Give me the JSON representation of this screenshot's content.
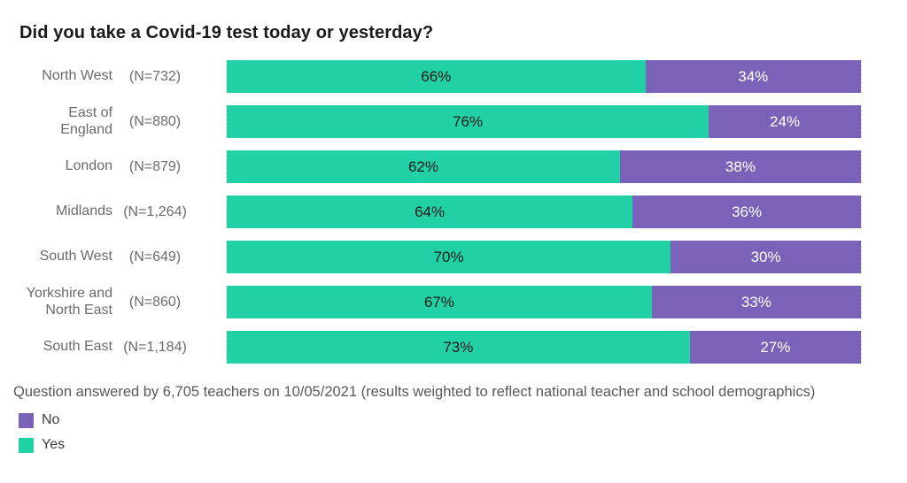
{
  "title": "Did you take a Covid-19 test today or yesterday?",
  "footer": "Question answered by 6,705 teachers on 10/05/2021 (results weighted to reflect national teacher and school demographics)",
  "colors": {
    "yes": "#21D0A4",
    "no": "#7A62B8"
  },
  "legend": [
    {
      "label": "No",
      "color": "#7A62B8"
    },
    {
      "label": "Yes",
      "color": "#21D0A4"
    }
  ],
  "rows": [
    {
      "region": "North West",
      "n": "(N=732)",
      "yes_pct": 66,
      "no_pct": 34,
      "yes_label": "66%",
      "no_label": "34%"
    },
    {
      "region": "East of England",
      "n": "(N=880)",
      "yes_pct": 76,
      "no_pct": 24,
      "yes_label": "76%",
      "no_label": "24%"
    },
    {
      "region": "London",
      "n": "(N=879)",
      "yes_pct": 62,
      "no_pct": 38,
      "yes_label": "62%",
      "no_label": "38%"
    },
    {
      "region": "Midlands",
      "n": "(N=1,264)",
      "yes_pct": 64,
      "no_pct": 36,
      "yes_label": "64%",
      "no_label": "36%"
    },
    {
      "region": "South West",
      "n": "(N=649)",
      "yes_pct": 70,
      "no_pct": 30,
      "yes_label": "70%",
      "no_label": "30%"
    },
    {
      "region": "Yorkshire and North East",
      "n": "(N=860)",
      "yes_pct": 67,
      "no_pct": 33,
      "yes_label": "67%",
      "no_label": "33%"
    },
    {
      "region": "South East",
      "n": "(N=1,184)",
      "yes_pct": 73,
      "no_pct": 27,
      "yes_label": "73%",
      "no_label": "27%"
    }
  ],
  "chart_data": {
    "type": "bar",
    "orientation": "horizontal",
    "stacked": true,
    "title": "Did you take a Covid-19 test today or yesterday?",
    "categories": [
      "North West",
      "East of England",
      "London",
      "Midlands",
      "South West",
      "Yorkshire and North East",
      "South East"
    ],
    "sample_sizes": [
      "(N=732)",
      "(N=880)",
      "(N=879)",
      "(N=1,264)",
      "(N=649)",
      "(N=860)",
      "(N=1,184)"
    ],
    "series": [
      {
        "name": "Yes",
        "color": "#21D0A4",
        "values": [
          66,
          76,
          62,
          64,
          70,
          67,
          73
        ]
      },
      {
        "name": "No",
        "color": "#7A62B8",
        "values": [
          34,
          24,
          38,
          36,
          30,
          33,
          27
        ]
      }
    ],
    "value_suffix": "%",
    "xlim": [
      0,
      100
    ],
    "grid": "dashed vertical edges only",
    "legend_position": "bottom-left",
    "annotation": "Question answered by 6,705 teachers on 10/05/2021 (results weighted to reflect national teacher and school demographics)"
  }
}
